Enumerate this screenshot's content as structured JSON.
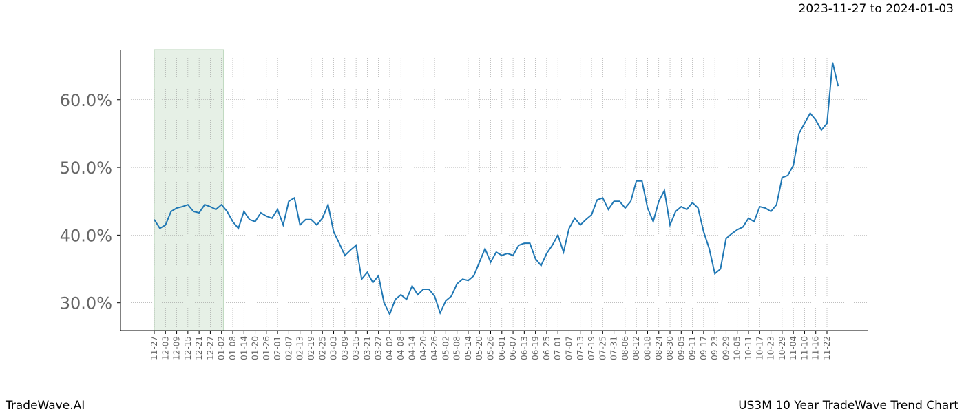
{
  "chart_data": {
    "type": "line",
    "title": "US3M 10 Year TradeWave Trend Chart",
    "subtitle": "2023-11-27 to 2024-01-03",
    "watermark": "TradeWave.AI",
    "categories": [
      "11-27",
      null,
      "12-03",
      null,
      "12-09",
      null,
      "12-15",
      null,
      "12-21",
      null,
      "12-27",
      null,
      "01-02",
      null,
      "01-08",
      null,
      "01-14",
      null,
      "01-20",
      null,
      "01-26",
      null,
      "02-01",
      null,
      "02-07",
      null,
      "02-13",
      null,
      "02-19",
      null,
      "02-25",
      null,
      "03-03",
      null,
      "03-09",
      null,
      "03-15",
      null,
      "03-21",
      null,
      "03-27",
      null,
      "04-02",
      null,
      "04-08",
      null,
      "04-14",
      null,
      "04-20",
      null,
      "04-26",
      null,
      "05-02",
      null,
      "05-08",
      null,
      "05-14",
      null,
      "05-20",
      null,
      "05-26",
      null,
      "06-01",
      null,
      "06-07",
      null,
      "06-13",
      null,
      "06-19",
      null,
      "06-25",
      null,
      "07-01",
      null,
      "07-07",
      null,
      "07-13",
      null,
      "07-19",
      null,
      "07-25",
      null,
      "07-31",
      null,
      "08-06",
      null,
      "08-12",
      null,
      "08-18",
      null,
      "08-24",
      null,
      "08-30",
      null,
      "09-05",
      null,
      "09-11",
      null,
      "09-17",
      null,
      "09-23",
      null,
      "09-29",
      null,
      "10-05",
      null,
      "10-11",
      null,
      "10-17",
      null,
      "10-23",
      null,
      "10-29",
      null,
      "11-04",
      null,
      "11-10",
      null,
      "11-16",
      null,
      "11-22",
      null,
      null
    ],
    "series": [
      {
        "color": "#1f77b4",
        "values": [
          42.3,
          41,
          41.5,
          43.5,
          44,
          44.2,
          44.5,
          43.5,
          43.3,
          44.5,
          44.2,
          43.8,
          44.5,
          43.5,
          42,
          41,
          43.5,
          42.3,
          42,
          43.3,
          42.8,
          42.5,
          43.8,
          41.5,
          45,
          45.5,
          41.5,
          42.3,
          42.3,
          41.5,
          42.5,
          44.5,
          40.5,
          38.8,
          37,
          37.8,
          38.5,
          33.5,
          34.5,
          33,
          34,
          30,
          28.3,
          30.5,
          31.2,
          30.5,
          32.5,
          31.2,
          32,
          32,
          31,
          28.5,
          30.3,
          31,
          32.8,
          33.5,
          33.3,
          34,
          36,
          38,
          36,
          37.5,
          37,
          37.3,
          37,
          38.5,
          38.8,
          38.8,
          36.5,
          35.5,
          37.3,
          38.5,
          40,
          37.5,
          41,
          42.5,
          41.5,
          42.3,
          43,
          45.2,
          45.5,
          43.8,
          45,
          45,
          44,
          45,
          48,
          48,
          44,
          42,
          45,
          46.6,
          41.5,
          43.5,
          44.2,
          43.8,
          44.8,
          44,
          40.5,
          38,
          34.3,
          35,
          39.5,
          40.2,
          40.8,
          41.2,
          42.5,
          42,
          44.2,
          44,
          43.5,
          44.5,
          48.5,
          48.8,
          50.3,
          55,
          56.5,
          58,
          57,
          55.5,
          56.5,
          65.5,
          62
        ]
      }
    ],
    "highlight": {
      "range": [
        "11-27",
        "01-02"
      ],
      "color": "#e6f0e6"
    },
    "ylim": [
      25.9,
      67.4
    ],
    "yticks": [
      {
        "value": 30,
        "label": "30.0%"
      },
      {
        "value": 40,
        "label": "40.0%"
      },
      {
        "value": 50,
        "label": "50.0%"
      },
      {
        "value": 60,
        "label": "60.0%"
      }
    ],
    "grid": true
  }
}
